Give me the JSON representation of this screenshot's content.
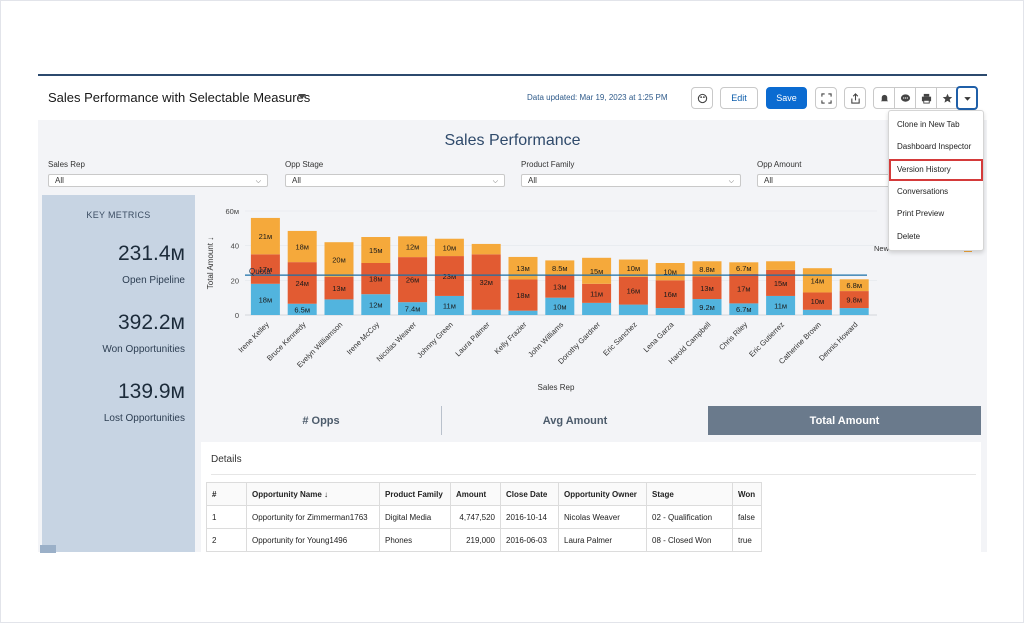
{
  "header": {
    "title": "Sales Performance with Selectable Measures",
    "data_updated": "Data updated: Mar 19, 2023 at 1:25 PM",
    "edit_label": "Edit",
    "save_label": "Save"
  },
  "dashboard": {
    "title": "Sales Performance",
    "filters": [
      {
        "label": "Sales Rep",
        "value": "All"
      },
      {
        "label": "Opp Stage",
        "value": "All"
      },
      {
        "label": "Product Family",
        "value": "All"
      },
      {
        "label": "Opp Amount",
        "value": "All"
      }
    ]
  },
  "metrics": {
    "title": "KEY METRICS",
    "items": [
      {
        "value": "231.4м",
        "label": "Open Pipeline"
      },
      {
        "value": "392.2м",
        "label": "Won Opportunities"
      },
      {
        "value": "139.9м",
        "label": "Lost Opportunities"
      }
    ]
  },
  "chart_data": {
    "type": "bar",
    "stacked": true,
    "xlabel": "Sales Rep",
    "ylabel": "Total Amount ↓",
    "ylim": [
      0,
      60
    ],
    "yticks": [
      "0",
      "20",
      "40",
      "60м"
    ],
    "reference_line": {
      "label": "Quota",
      "value": 23
    },
    "legend_label": "New Business / Add-on",
    "categories": [
      "Irene Kelley",
      "Bruce Kennedy",
      "Evelyn Williamson",
      "Irene McCoy",
      "Nicolas Weaver",
      "Johnny Green",
      "Laura Palmer",
      "Kelly Frazier",
      "John Williams",
      "Dorothy Gardner",
      "Eric Sanchez",
      "Lena Garza",
      "Harold Campbell",
      "Chris Riley",
      "Eric Gutierrez",
      "Catherine Brown",
      "Dennis Howard"
    ],
    "series": [
      {
        "name": "Blue",
        "color": "#52b4de",
        "values": [
          18,
          6.5,
          9,
          12,
          7.4,
          11,
          3,
          2.5,
          10,
          7,
          6,
          4,
          9.2,
          6.7,
          11,
          3,
          4
        ],
        "labels": [
          "18м",
          "6.5м",
          "",
          "12м",
          "7.4м",
          "11м",
          "",
          "",
          "10м",
          "",
          "",
          "",
          "9.2м",
          "6.7м",
          "11м",
          "",
          ""
        ]
      },
      {
        "name": "Red",
        "color": "#e25b32",
        "values": [
          17,
          24,
          13,
          18,
          26,
          23,
          32,
          18,
          13,
          11,
          16,
          16,
          13,
          17,
          15,
          10,
          9.8
        ],
        "labels": [
          "17м",
          "24м",
          "13м",
          "18м",
          "26м",
          "23м",
          "32м",
          "18м",
          "13м",
          "11м",
          "16м",
          "16м",
          "13м",
          "17м",
          "15м",
          "10м",
          "9.8м"
        ]
      },
      {
        "name": "Orange",
        "color": "#f5a93b",
        "values": [
          21,
          18,
          20,
          15,
          12,
          10,
          6,
          13,
          8.5,
          15,
          10,
          10,
          8.8,
          6.7,
          5,
          14,
          6.8
        ],
        "labels": [
          "21м",
          "18м",
          "20м",
          "15м",
          "12м",
          "10м",
          "",
          "13м",
          "8.5м",
          "15м",
          "10м",
          "10м",
          "8.8м",
          "6.7м",
          "",
          "14м",
          "6.8м"
        ]
      }
    ]
  },
  "tabs": [
    {
      "label": "# Opps"
    },
    {
      "label": "Avg Amount"
    },
    {
      "label": "Total Amount"
    }
  ],
  "details": {
    "title": "Details",
    "columns": [
      "#",
      "Opportunity Name ↓",
      "Product Family",
      "Amount",
      "Close Date",
      "Opportunity Owner",
      "Stage",
      "Won"
    ],
    "rows": [
      [
        "1",
        "Opportunity for Zimmerman1763",
        "Digital Media",
        "4,747,520",
        "2016-10-14",
        "Nicolas Weaver",
        "02 - Qualification",
        "false"
      ],
      [
        "2",
        "Opportunity for Young1496",
        "Phones",
        "219,000",
        "2016-06-03",
        "Laura Palmer",
        "08 - Closed Won",
        "true"
      ]
    ]
  },
  "menu": {
    "items": [
      "Clone in New Tab",
      "Dashboard Inspector",
      "Version History",
      "Conversations",
      "Print Preview",
      "Delete"
    ]
  },
  "colors": {
    "accent": "#0b6bd1",
    "highlight": "#d43a3a",
    "metrics_bg": "#c7d4e3",
    "tab_active": "#6a7a8c"
  }
}
